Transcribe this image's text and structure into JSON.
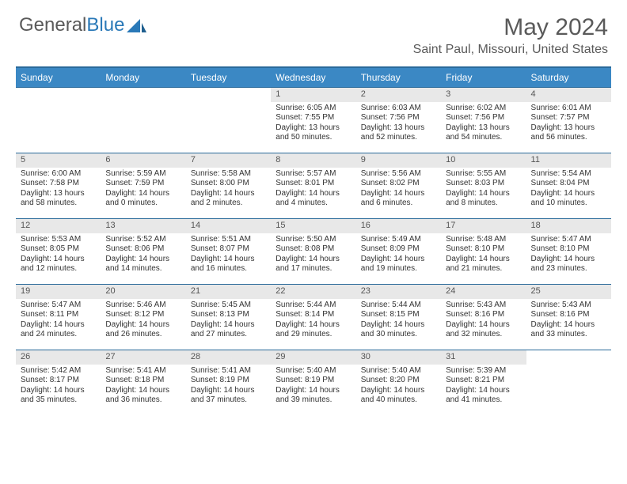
{
  "logo": {
    "text1": "General",
    "text2": "Blue"
  },
  "title": {
    "month": "May 2024",
    "location": "Saint Paul, Missouri, United States"
  },
  "colors": {
    "header_bg": "#3b88c4",
    "header_border": "#2a6a9a",
    "daynum_bg": "#e8e8e8",
    "text_muted": "#5a5a5a",
    "blue_brand": "#2a79b8"
  },
  "weekdays": [
    "Sunday",
    "Monday",
    "Tuesday",
    "Wednesday",
    "Thursday",
    "Friday",
    "Saturday"
  ],
  "weeks": [
    [
      null,
      null,
      null,
      {
        "n": "1",
        "sr": "Sunrise: 6:05 AM",
        "ss": "Sunset: 7:55 PM",
        "dl1": "Daylight: 13 hours",
        "dl2": "and 50 minutes."
      },
      {
        "n": "2",
        "sr": "Sunrise: 6:03 AM",
        "ss": "Sunset: 7:56 PM",
        "dl1": "Daylight: 13 hours",
        "dl2": "and 52 minutes."
      },
      {
        "n": "3",
        "sr": "Sunrise: 6:02 AM",
        "ss": "Sunset: 7:56 PM",
        "dl1": "Daylight: 13 hours",
        "dl2": "and 54 minutes."
      },
      {
        "n": "4",
        "sr": "Sunrise: 6:01 AM",
        "ss": "Sunset: 7:57 PM",
        "dl1": "Daylight: 13 hours",
        "dl2": "and 56 minutes."
      }
    ],
    [
      {
        "n": "5",
        "sr": "Sunrise: 6:00 AM",
        "ss": "Sunset: 7:58 PM",
        "dl1": "Daylight: 13 hours",
        "dl2": "and 58 minutes."
      },
      {
        "n": "6",
        "sr": "Sunrise: 5:59 AM",
        "ss": "Sunset: 7:59 PM",
        "dl1": "Daylight: 14 hours",
        "dl2": "and 0 minutes."
      },
      {
        "n": "7",
        "sr": "Sunrise: 5:58 AM",
        "ss": "Sunset: 8:00 PM",
        "dl1": "Daylight: 14 hours",
        "dl2": "and 2 minutes."
      },
      {
        "n": "8",
        "sr": "Sunrise: 5:57 AM",
        "ss": "Sunset: 8:01 PM",
        "dl1": "Daylight: 14 hours",
        "dl2": "and 4 minutes."
      },
      {
        "n": "9",
        "sr": "Sunrise: 5:56 AM",
        "ss": "Sunset: 8:02 PM",
        "dl1": "Daylight: 14 hours",
        "dl2": "and 6 minutes."
      },
      {
        "n": "10",
        "sr": "Sunrise: 5:55 AM",
        "ss": "Sunset: 8:03 PM",
        "dl1": "Daylight: 14 hours",
        "dl2": "and 8 minutes."
      },
      {
        "n": "11",
        "sr": "Sunrise: 5:54 AM",
        "ss": "Sunset: 8:04 PM",
        "dl1": "Daylight: 14 hours",
        "dl2": "and 10 minutes."
      }
    ],
    [
      {
        "n": "12",
        "sr": "Sunrise: 5:53 AM",
        "ss": "Sunset: 8:05 PM",
        "dl1": "Daylight: 14 hours",
        "dl2": "and 12 minutes."
      },
      {
        "n": "13",
        "sr": "Sunrise: 5:52 AM",
        "ss": "Sunset: 8:06 PM",
        "dl1": "Daylight: 14 hours",
        "dl2": "and 14 minutes."
      },
      {
        "n": "14",
        "sr": "Sunrise: 5:51 AM",
        "ss": "Sunset: 8:07 PM",
        "dl1": "Daylight: 14 hours",
        "dl2": "and 16 minutes."
      },
      {
        "n": "15",
        "sr": "Sunrise: 5:50 AM",
        "ss": "Sunset: 8:08 PM",
        "dl1": "Daylight: 14 hours",
        "dl2": "and 17 minutes."
      },
      {
        "n": "16",
        "sr": "Sunrise: 5:49 AM",
        "ss": "Sunset: 8:09 PM",
        "dl1": "Daylight: 14 hours",
        "dl2": "and 19 minutes."
      },
      {
        "n": "17",
        "sr": "Sunrise: 5:48 AM",
        "ss": "Sunset: 8:10 PM",
        "dl1": "Daylight: 14 hours",
        "dl2": "and 21 minutes."
      },
      {
        "n": "18",
        "sr": "Sunrise: 5:47 AM",
        "ss": "Sunset: 8:10 PM",
        "dl1": "Daylight: 14 hours",
        "dl2": "and 23 minutes."
      }
    ],
    [
      {
        "n": "19",
        "sr": "Sunrise: 5:47 AM",
        "ss": "Sunset: 8:11 PM",
        "dl1": "Daylight: 14 hours",
        "dl2": "and 24 minutes."
      },
      {
        "n": "20",
        "sr": "Sunrise: 5:46 AM",
        "ss": "Sunset: 8:12 PM",
        "dl1": "Daylight: 14 hours",
        "dl2": "and 26 minutes."
      },
      {
        "n": "21",
        "sr": "Sunrise: 5:45 AM",
        "ss": "Sunset: 8:13 PM",
        "dl1": "Daylight: 14 hours",
        "dl2": "and 27 minutes."
      },
      {
        "n": "22",
        "sr": "Sunrise: 5:44 AM",
        "ss": "Sunset: 8:14 PM",
        "dl1": "Daylight: 14 hours",
        "dl2": "and 29 minutes."
      },
      {
        "n": "23",
        "sr": "Sunrise: 5:44 AM",
        "ss": "Sunset: 8:15 PM",
        "dl1": "Daylight: 14 hours",
        "dl2": "and 30 minutes."
      },
      {
        "n": "24",
        "sr": "Sunrise: 5:43 AM",
        "ss": "Sunset: 8:16 PM",
        "dl1": "Daylight: 14 hours",
        "dl2": "and 32 minutes."
      },
      {
        "n": "25",
        "sr": "Sunrise: 5:43 AM",
        "ss": "Sunset: 8:16 PM",
        "dl1": "Daylight: 14 hours",
        "dl2": "and 33 minutes."
      }
    ],
    [
      {
        "n": "26",
        "sr": "Sunrise: 5:42 AM",
        "ss": "Sunset: 8:17 PM",
        "dl1": "Daylight: 14 hours",
        "dl2": "and 35 minutes."
      },
      {
        "n": "27",
        "sr": "Sunrise: 5:41 AM",
        "ss": "Sunset: 8:18 PM",
        "dl1": "Daylight: 14 hours",
        "dl2": "and 36 minutes."
      },
      {
        "n": "28",
        "sr": "Sunrise: 5:41 AM",
        "ss": "Sunset: 8:19 PM",
        "dl1": "Daylight: 14 hours",
        "dl2": "and 37 minutes."
      },
      {
        "n": "29",
        "sr": "Sunrise: 5:40 AM",
        "ss": "Sunset: 8:19 PM",
        "dl1": "Daylight: 14 hours",
        "dl2": "and 39 minutes."
      },
      {
        "n": "30",
        "sr": "Sunrise: 5:40 AM",
        "ss": "Sunset: 8:20 PM",
        "dl1": "Daylight: 14 hours",
        "dl2": "and 40 minutes."
      },
      {
        "n": "31",
        "sr": "Sunrise: 5:39 AM",
        "ss": "Sunset: 8:21 PM",
        "dl1": "Daylight: 14 hours",
        "dl2": "and 41 minutes."
      },
      null
    ]
  ]
}
